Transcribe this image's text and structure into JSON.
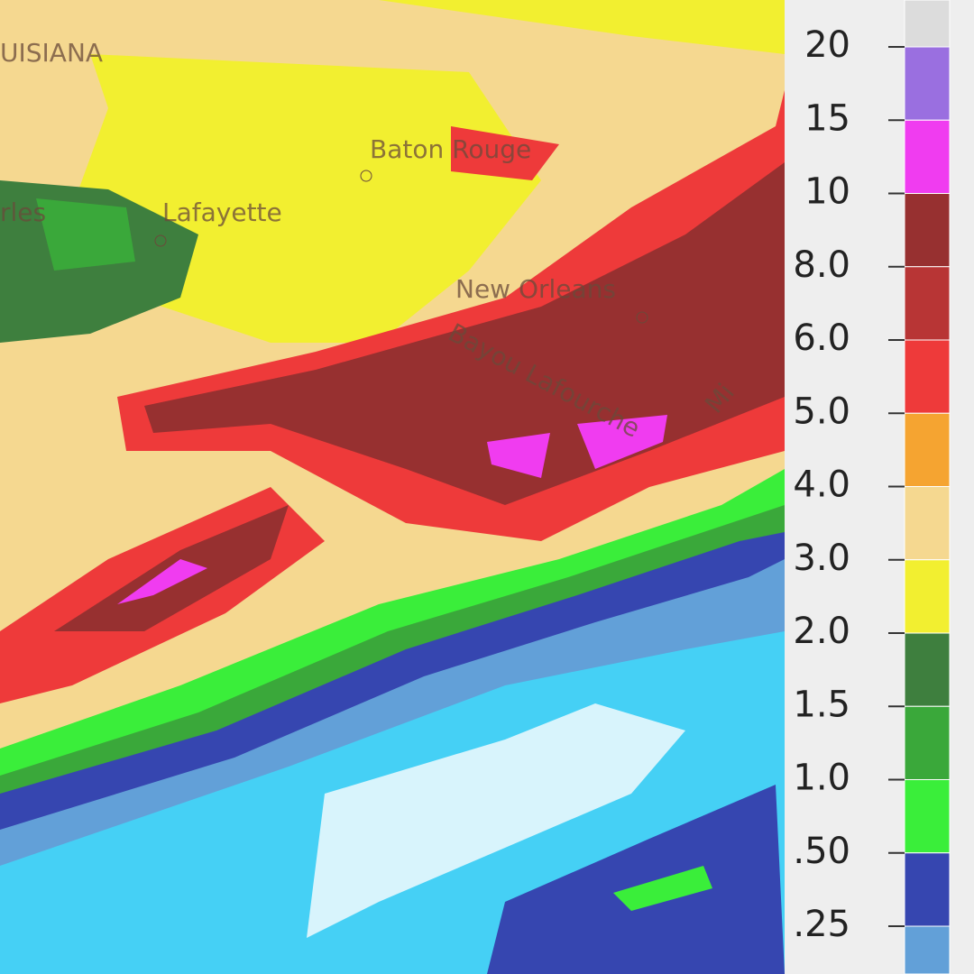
{
  "map": {
    "labels": [
      "UISIANA",
      "Baton Rouge",
      "Lafayette",
      "rles",
      "New Orleans",
      "Bayou Lafourche",
      "Mi"
    ]
  },
  "legend": {
    "ticks": [
      "20",
      "15",
      "10",
      "8.0",
      "6.0",
      "5.0",
      "4.0",
      "3.0",
      "2.0",
      "1.5",
      "1.0",
      ".50",
      ".25"
    ],
    "colors": [
      "#dcdcdc",
      "#9a6fe0",
      "#f03cf0",
      "#973030",
      "#b83535",
      "#ee3a3a",
      "#f5a431",
      "#f5d890",
      "#f2ef30",
      "#3e7f3e",
      "#3aa83a",
      "#3aee3a",
      "#3646b0",
      "#62a0d8"
    ]
  }
}
